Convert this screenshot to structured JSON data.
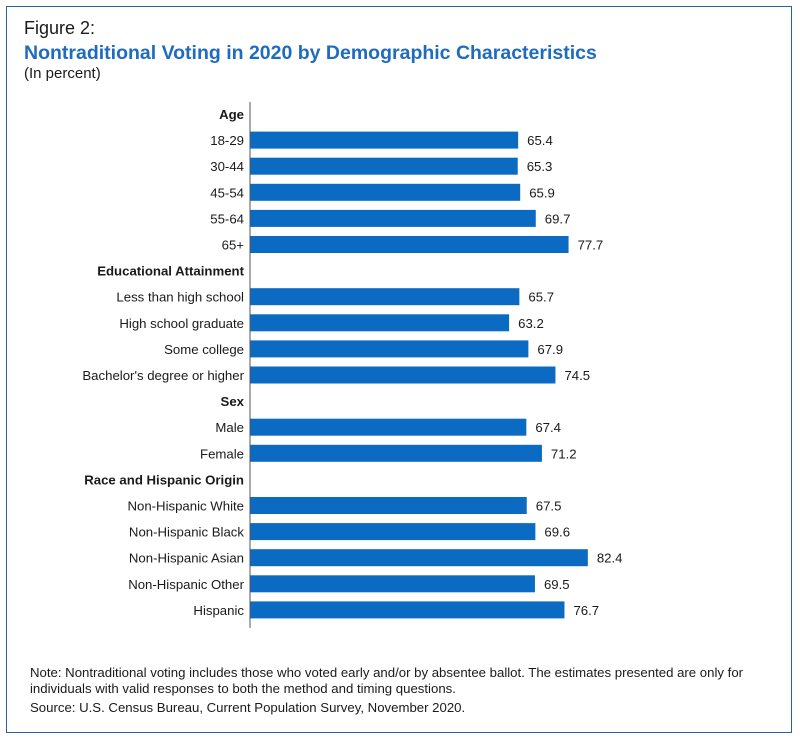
{
  "figure_label": "Figure 2:",
  "chart_data": {
    "type": "bar",
    "orientation": "horizontal",
    "title": "Nontraditional Voting in 2020 by Demographic Characteristics",
    "subtitle": "(In percent)",
    "bar_color": "#0b6bc2",
    "xlim": [
      0,
      100
    ],
    "groups": [
      {
        "name": "Age",
        "categories": [
          "18-29",
          "30-44",
          "45-54",
          "55-64",
          "65+"
        ],
        "values": [
          65.4,
          65.3,
          65.9,
          69.7,
          77.7
        ]
      },
      {
        "name": "Educational Attainment",
        "categories": [
          "Less than high school",
          "High school graduate",
          "Some college",
          "Bachelor's degree or higher"
        ],
        "values": [
          65.7,
          63.2,
          67.9,
          74.5
        ]
      },
      {
        "name": "Sex",
        "categories": [
          "Male",
          "Female"
        ],
        "values": [
          67.4,
          71.2
        ]
      },
      {
        "name": "Race and Hispanic Origin",
        "categories": [
          "Non-Hispanic White",
          "Non-Hispanic Black",
          "Non-Hispanic Asian",
          "Non-Hispanic Other",
          "Hispanic"
        ],
        "values": [
          67.5,
          69.6,
          82.4,
          69.5,
          76.7
        ]
      }
    ]
  },
  "note": "Note: Nontraditional voting includes those who voted early and/or by absentee ballot. The estimates presented are only for individuals with valid responses to both the method and timing questions.",
  "source": "Source: U.S. Census Bureau, Current Population Survey, November 2020."
}
